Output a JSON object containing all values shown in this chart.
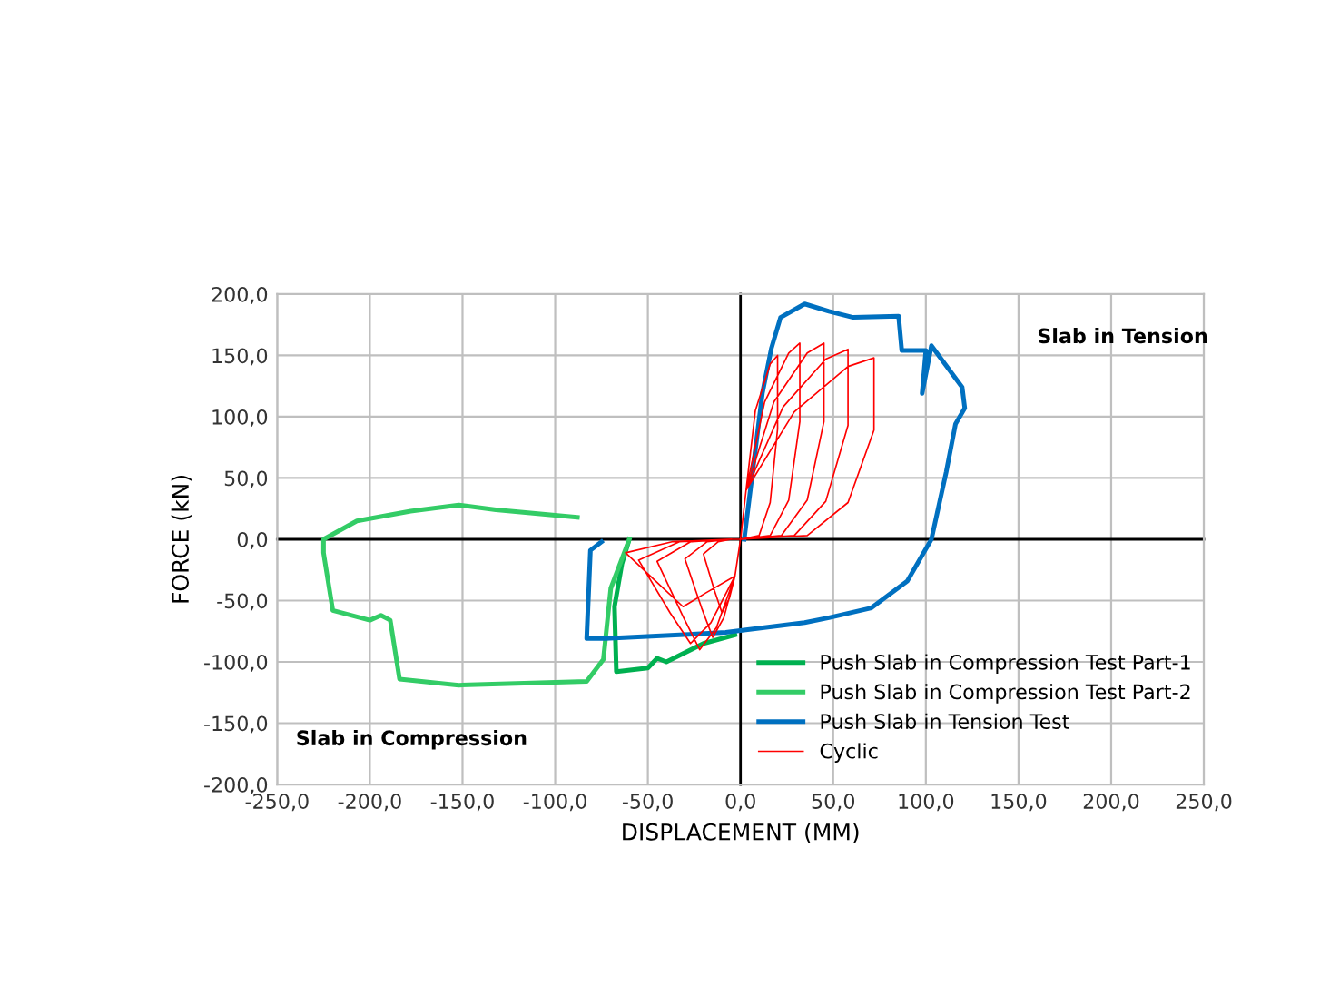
{
  "chart_data": {
    "type": "line",
    "xlabel": "DISPLACEMENT (MM)",
    "ylabel": "FORCE (kN)",
    "xlim": [
      -250,
      250
    ],
    "ylim": [
      -200,
      200
    ],
    "xticks": [
      {
        "value": -250,
        "label": "-250,0"
      },
      {
        "value": -200,
        "label": "-200,0"
      },
      {
        "value": -150,
        "label": "-150,0"
      },
      {
        "value": -100,
        "label": "-100,0"
      },
      {
        "value": -50,
        "label": "-50,0"
      },
      {
        "value": 0,
        "label": "0,0"
      },
      {
        "value": 50,
        "label": "50,0"
      },
      {
        "value": 100,
        "label": "100,0"
      },
      {
        "value": 150,
        "label": "150,0"
      },
      {
        "value": 200,
        "label": "200,0"
      },
      {
        "value": 250,
        "label": "250,0"
      }
    ],
    "yticks": [
      {
        "value": -200,
        "label": "-200,0"
      },
      {
        "value": -150,
        "label": "-150,0"
      },
      {
        "value": -100,
        "label": "-100,0"
      },
      {
        "value": -50,
        "label": "-50,0"
      },
      {
        "value": 0,
        "label": "0,0"
      },
      {
        "value": 50,
        "label": "50,0"
      },
      {
        "value": 100,
        "label": "100,0"
      },
      {
        "value": 150,
        "label": "150,0"
      },
      {
        "value": 200,
        "label": "200,0"
      }
    ],
    "grid": true,
    "legend": "bottom right",
    "marker": "none",
    "line_style": "solid",
    "annotations": [
      "Slab in Tension",
      "Slab in Compression"
    ],
    "series": [
      {
        "name": "Push Slab in Compression Test Part-1",
        "color": "#00b050",
        "x": [
          -3,
          -20,
          -40,
          -45,
          -50,
          -67,
          -68,
          -64,
          -60
        ],
        "values": [
          -78,
          -85,
          -100,
          -97,
          -105,
          -108,
          -55,
          -20,
          0
        ]
      },
      {
        "name": "Push Slab in Compression Test Part-2",
        "color": "#33cc66",
        "x": [
          -60,
          -70,
          -74,
          -83,
          -152,
          -184,
          -189,
          -194,
          -200,
          -220,
          -225,
          -225,
          -207,
          -178,
          -152,
          -132,
          -88
        ],
        "values": [
          0,
          -40,
          -98,
          -116,
          -119,
          -114,
          -66,
          -62,
          -66,
          -58,
          -11,
          0,
          15,
          23,
          28,
          24,
          18
        ]
      },
      {
        "name": "Push Slab in Tension Test",
        "color": "#0070c0",
        "x": [
          2,
          11.8,
          16.7,
          21.6,
          34.6,
          47.7,
          60.8,
          85.3,
          87,
          100,
          98,
          103,
          119.6,
          121,
          116,
          111,
          103,
          90,
          70.6,
          47.7,
          34.6,
          -8,
          -73,
          -83,
          -81,
          -75
        ],
        "values": [
          0,
          119,
          156,
          181,
          192,
          186,
          181,
          182,
          154,
          154,
          119,
          158,
          124,
          107,
          94,
          55,
          0,
          -34,
          -56,
          -64,
          -68,
          -76,
          -81,
          -81,
          -9,
          -2
        ]
      },
      {
        "name": "Cyclic",
        "color": "#ff0000",
        "x": [
          0,
          3,
          8,
          16,
          20,
          20,
          16,
          10,
          0,
          -3,
          -6,
          -10,
          -14,
          -20,
          -12,
          -5,
          0,
          3,
          13,
          26,
          32,
          32,
          26,
          16,
          0,
          -3,
          -9,
          -15,
          -21,
          -30,
          -18,
          -5,
          0,
          3,
          18,
          36,
          45,
          45,
          36,
          22,
          0,
          -3,
          -13,
          -22,
          -31,
          -45,
          -27,
          -5,
          0,
          3,
          23,
          46,
          58,
          58,
          46,
          29,
          0,
          -3,
          -16,
          -27,
          -38,
          -55,
          -33,
          -5,
          0,
          3,
          29,
          58,
          72,
          72,
          58,
          36,
          0,
          -3,
          -19,
          -31,
          -43,
          -62,
          -37,
          -5
        ],
        "values": [
          0,
          40,
          105,
          143,
          150,
          90,
          30,
          3,
          0,
          -30,
          -48,
          -60,
          -42,
          -12,
          -2,
          0,
          0,
          40,
          112,
          152,
          160,
          96,
          32,
          3,
          0,
          -30,
          -64,
          -80,
          -56,
          -16,
          -2,
          0,
          0,
          40,
          112,
          152,
          160,
          96,
          32,
          3,
          0,
          -30,
          -72,
          -90,
          -63,
          -18,
          -2,
          0,
          0,
          40,
          108,
          147,
          155,
          93,
          31,
          3,
          0,
          -30,
          -68,
          -85,
          -60,
          -17,
          -2,
          0,
          0,
          40,
          104,
          141,
          148,
          89,
          30,
          3,
          0,
          -30,
          -44,
          -55,
          -38,
          -11,
          -2,
          0
        ]
      }
    ]
  }
}
